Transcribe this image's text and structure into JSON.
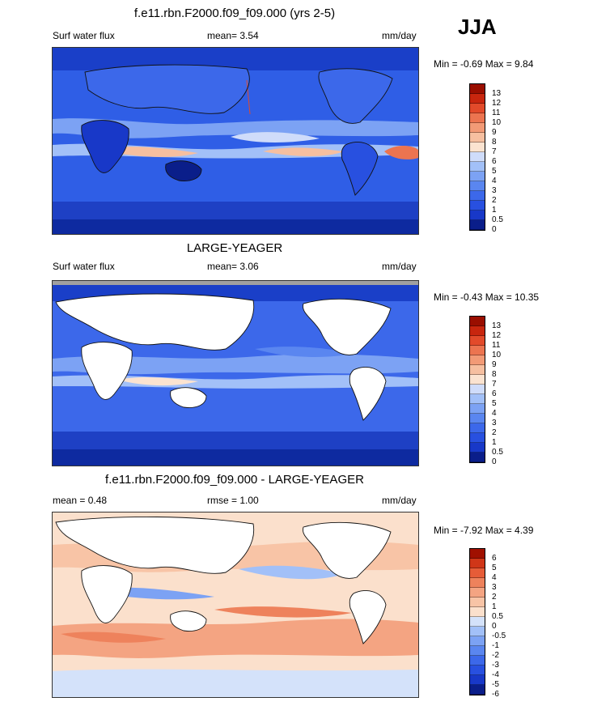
{
  "season_label": "JJA",
  "panels": [
    {
      "id": "p1",
      "title": "f.e11.rbn.F2000.f09_f09.000 (yrs 2-5)",
      "left_label": "Surf water flux",
      "center_label": "mean=   3.54",
      "units": "mm/day",
      "minmax": "Min =  -0.69 Max =   9.84",
      "levels": [
        "0",
        "0.5",
        "1",
        "2",
        "3",
        "4",
        "5",
        "6",
        "7",
        "8",
        "9",
        "10",
        "11",
        "12",
        "13"
      ],
      "colors": [
        "#0a1e8a",
        "#1838c8",
        "#2850e0",
        "#3c68ea",
        "#5a86f0",
        "#7ca2f4",
        "#a2c0f8",
        "#cfdcfa",
        "#fbe3d0",
        "#f6bfa0",
        "#f29a76",
        "#ec7450",
        "#e24a2a",
        "#c8260e",
        "#9a0e00"
      ]
    },
    {
      "id": "p2",
      "title": "LARGE-YEAGER",
      "left_label": "Surf water flux",
      "center_label": "mean=   3.06",
      "units": "mm/day",
      "minmax": "Min =  -0.43 Max =  10.35",
      "levels": [
        "0",
        "0.5",
        "1",
        "2",
        "3",
        "4",
        "5",
        "6",
        "7",
        "8",
        "9",
        "10",
        "11",
        "12",
        "13"
      ],
      "colors": [
        "#0a1e8a",
        "#1838c8",
        "#2850e0",
        "#3c68ea",
        "#5a86f0",
        "#7ca2f4",
        "#a2c0f8",
        "#cfdcfa",
        "#fbe3d0",
        "#f6bfa0",
        "#f29a76",
        "#ec7450",
        "#e24a2a",
        "#c8260e",
        "#9a0e00"
      ]
    },
    {
      "id": "p3",
      "title": "f.e11.rbn.F2000.f09_f09.000 - LARGE-YEAGER",
      "left_label": "mean =   0.48",
      "center_label": "rmse =   1.00",
      "units": "mm/day",
      "minmax": "Min =  -7.92 Max =   4.39",
      "levels": [
        "-6",
        "-5",
        "-4",
        "-3",
        "-2",
        "-1",
        "-0.5",
        "0",
        "0.5",
        "1",
        "2",
        "3",
        "4",
        "5",
        "6"
      ],
      "colors": [
        "#0a1e8a",
        "#1838c8",
        "#2850e0",
        "#3c68ea",
        "#5a86f0",
        "#7ca2f4",
        "#a2c0f8",
        "#d4e2fa",
        "#fbe0cc",
        "#f8c4a6",
        "#f4a482",
        "#ee825c",
        "#e65c38",
        "#d03618",
        "#a01000"
      ]
    }
  ],
  "chart_data": [
    {
      "type": "heatmap",
      "title": "f.e11.rbn.F2000.f09_f09.000 (yrs 2-5)",
      "variable": "Surf water flux",
      "units": "mm/day",
      "mean": 3.54,
      "min": -0.69,
      "max": 9.84,
      "colorbar_levels": [
        0,
        0.5,
        1,
        2,
        3,
        4,
        5,
        6,
        7,
        8,
        9,
        10,
        11,
        12,
        13
      ]
    },
    {
      "type": "heatmap",
      "title": "LARGE-YEAGER",
      "variable": "Surf water flux",
      "units": "mm/day",
      "mean": 3.06,
      "min": -0.43,
      "max": 10.35,
      "colorbar_levels": [
        0,
        0.5,
        1,
        2,
        3,
        4,
        5,
        6,
        7,
        8,
        9,
        10,
        11,
        12,
        13
      ]
    },
    {
      "type": "heatmap",
      "title": "f.e11.rbn.F2000.f09_f09.000 - LARGE-YEAGER",
      "units": "mm/day",
      "mean": 0.48,
      "rmse": 1.0,
      "min": -7.92,
      "max": 4.39,
      "colorbar_levels": [
        -6,
        -5,
        -4,
        -3,
        -2,
        -1,
        -0.5,
        0,
        0.5,
        1,
        2,
        3,
        4,
        5,
        6
      ]
    }
  ]
}
